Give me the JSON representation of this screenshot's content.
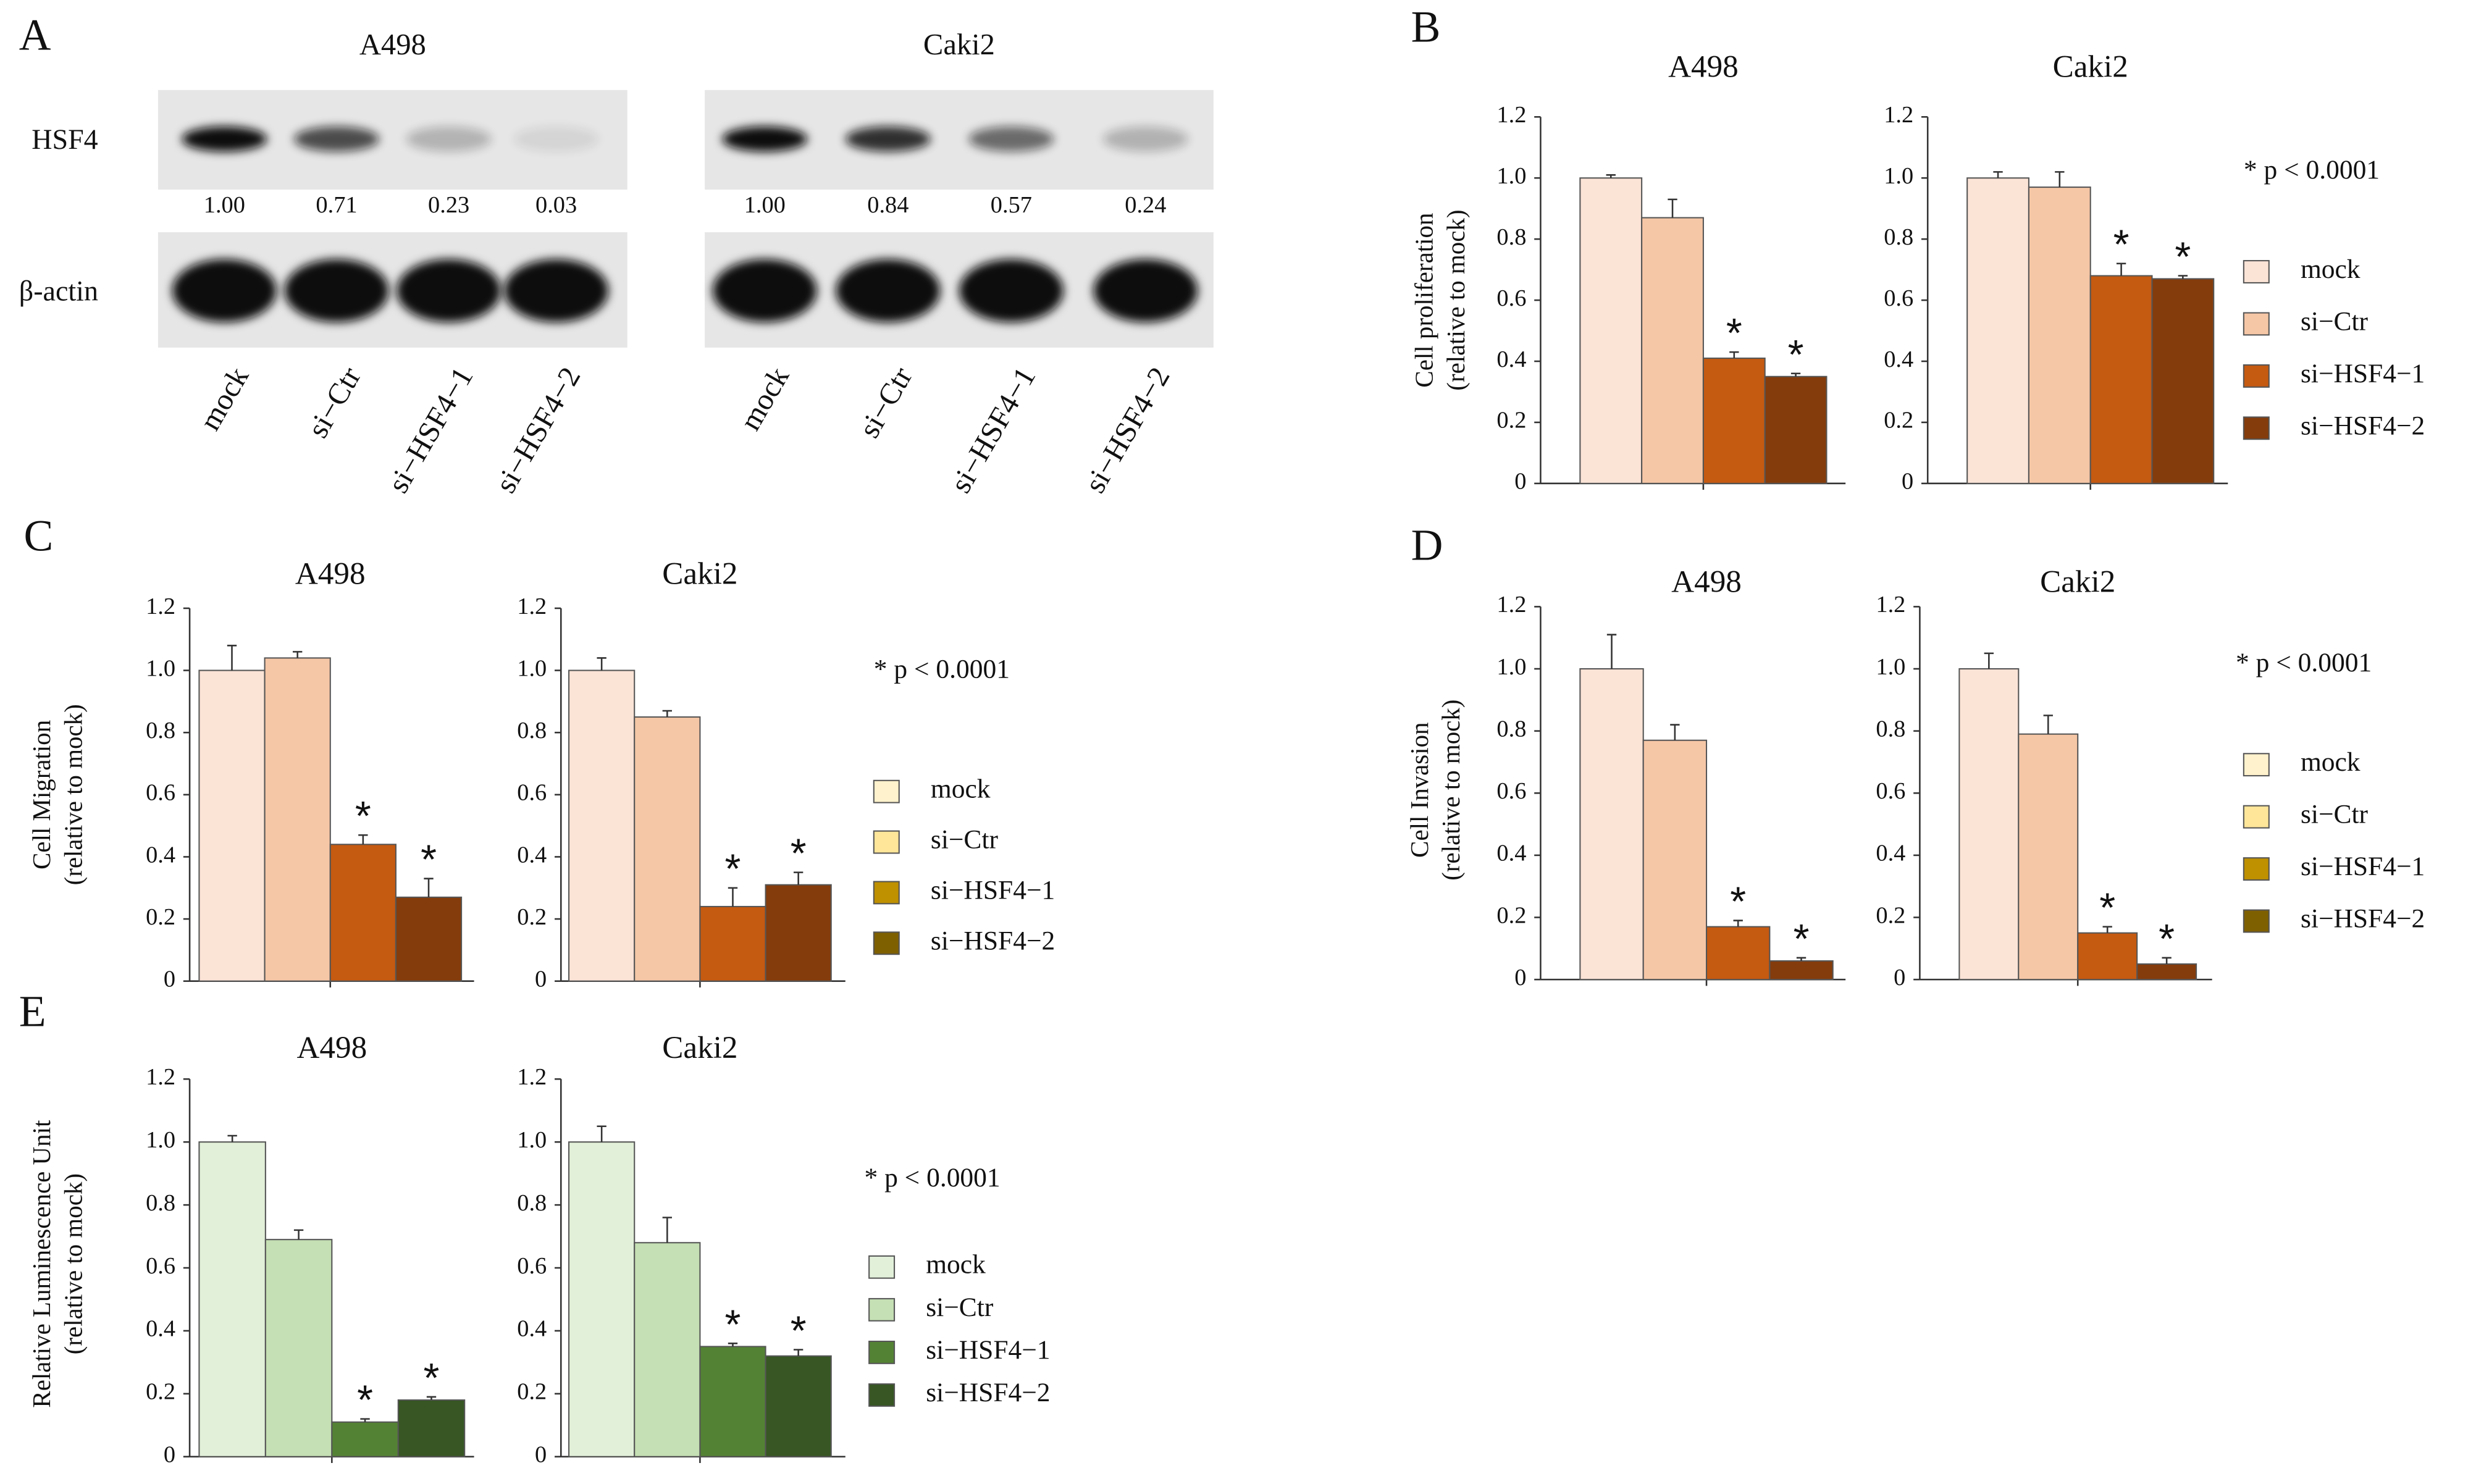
{
  "western_blot": {
    "panel_label": "A",
    "rows": [
      "HSF4",
      "β-actin"
    ],
    "lanes": [
      "mock",
      "si−Ctr",
      "si−HSF4−1",
      "si−HSF4−2"
    ],
    "cell_lines": [
      {
        "name": "A498",
        "densities": [
          1,
          0.71,
          0.23,
          0.03
        ],
        "density_labels": [
          "1.00",
          "0.71",
          "0.23",
          "0.03"
        ]
      },
      {
        "name": "Caki2",
        "densities": [
          1,
          0.84,
          0.57,
          0.24
        ],
        "density_labels": [
          "1.00",
          "0.84",
          "0.57",
          "0.24"
        ]
      }
    ]
  },
  "chart_data": [
    {
      "type": "bar",
      "panel_label": "B",
      "title": "A498",
      "ylabel": [
        "Cell proliferation",
        "(relative to mock)"
      ],
      "values": [
        1.0,
        0.87,
        0.41,
        0.35
      ],
      "errors": [
        0.01,
        0.06,
        0.02,
        0.01
      ],
      "colors": [
        "#fbe3d6",
        "#f6c7a6",
        "#c55a11",
        "#843c0c"
      ],
      "significance": [
        null,
        null,
        "*",
        "*"
      ],
      "ylim": [
        0,
        1.2
      ],
      "yticks": [
        0,
        0.2,
        0.4,
        0.6,
        0.8,
        {
          "value": 1,
          "label": "1.0"
        },
        1.2
      ]
    },
    {
      "type": "bar",
      "title": "Caki2",
      "values": [
        1.0,
        0.97,
        0.68,
        0.67
      ],
      "errors": [
        0.02,
        0.05,
        0.04,
        0.01
      ],
      "colors": [
        "#fbe3d6",
        "#f6c7a6",
        "#c55a11",
        "#843c0c"
      ],
      "significance": [
        null,
        null,
        "*",
        "*"
      ],
      "ylim": [
        0,
        1.2
      ],
      "yticks": [
        0,
        0.2,
        0.4,
        0.6,
        0.8,
        {
          "value": 1,
          "label": "1.0"
        },
        1.2
      ],
      "annotation": "* p < 0.0001",
      "legend": {
        "labels": [
          "mock",
          "si−Ctr",
          "si−HSF4−1",
          "si−HSF4−2"
        ],
        "colors": [
          "#fbe3d6",
          "#f6c7a6",
          "#c55a11",
          "#843c0c"
        ]
      }
    },
    {
      "type": "bar",
      "panel_label": "C",
      "title": "A498",
      "ylabel": [
        "Cell Migration",
        "(relative to mock)"
      ],
      "values": [
        1.0,
        1.04,
        0.44,
        0.27
      ],
      "errors": [
        0.08,
        0.02,
        0.03,
        0.06
      ],
      "colors": [
        "#fbe3d6",
        "#f6c7a6",
        "#c55a11",
        "#843c0c"
      ],
      "significance": [
        null,
        null,
        "*",
        "*"
      ],
      "ylim": [
        0,
        1.2
      ],
      "yticks": [
        0,
        0.2,
        0.4,
        0.6,
        0.8,
        {
          "value": 1,
          "label": "1.0"
        },
        1.2
      ]
    },
    {
      "type": "bar",
      "title": "Caki2",
      "values": [
        1.0,
        0.85,
        0.24,
        0.31
      ],
      "errors": [
        0.04,
        0.02,
        0.06,
        0.04
      ],
      "colors": [
        "#fbe3d6",
        "#f6c7a6",
        "#c55a11",
        "#843c0c"
      ],
      "significance": [
        null,
        null,
        "*",
        "*"
      ],
      "ylim": [
        0,
        1.2
      ],
      "yticks": [
        0,
        0.2,
        0.4,
        0.6,
        0.8,
        {
          "value": 1,
          "label": "1.0"
        },
        1.2
      ],
      "annotation": "* p < 0.0001",
      "legend": {
        "labels": [
          "mock",
          "si−Ctr",
          "si−HSF4−1",
          "si−HSF4−2"
        ],
        "colors": [
          "#fff2cc",
          "#ffe699",
          "#bf9000",
          "#7f6000"
        ]
      }
    },
    {
      "type": "bar",
      "panel_label": "D",
      "title": "A498",
      "ylabel": [
        "Cell  Invasion",
        "(relative to mock)"
      ],
      "values": [
        1.0,
        0.77,
        0.17,
        0.06
      ],
      "errors": [
        0.11,
        0.05,
        0.02,
        0.01
      ],
      "colors": [
        "#fbe3d6",
        "#f6c7a6",
        "#c55a11",
        "#843c0c"
      ],
      "significance": [
        null,
        null,
        "*",
        "*"
      ],
      "ylim": [
        0,
        1.2
      ],
      "yticks": [
        0,
        0.2,
        0.4,
        0.6,
        0.8,
        {
          "value": 1,
          "label": "1.0"
        },
        1.2
      ]
    },
    {
      "type": "bar",
      "title": "Caki2",
      "values": [
        1.0,
        0.79,
        0.15,
        0.05
      ],
      "errors": [
        0.05,
        0.06,
        0.02,
        0.02
      ],
      "colors": [
        "#fbe3d6",
        "#f6c7a6",
        "#c55a11",
        "#843c0c"
      ],
      "significance": [
        null,
        null,
        "*",
        "*"
      ],
      "ylim": [
        0,
        1.2
      ],
      "yticks": [
        0,
        0.2,
        0.4,
        0.6,
        0.8,
        {
          "value": 1,
          "label": "1.0"
        },
        1.2
      ],
      "annotation": "* p < 0.0001",
      "legend": {
        "labels": [
          "mock",
          "si−Ctr",
          "si−HSF4−1",
          "si−HSF4−2"
        ],
        "colors": [
          "#fff2cc",
          "#ffe699",
          "#bf9000",
          "#7f6000"
        ]
      }
    },
    {
      "type": "bar",
      "panel_label": "E",
      "title": "A498",
      "ylabel": [
        "Relative Luminescence Unit",
        "(relative to mock)"
      ],
      "values": [
        1.0,
        0.69,
        0.11,
        0.18
      ],
      "errors": [
        0.02,
        0.03,
        0.01,
        0.01
      ],
      "colors": [
        "#e2f0d9",
        "#c5e0b4",
        "#548235",
        "#375623"
      ],
      "significance": [
        null,
        null,
        "*",
        "*"
      ],
      "ylim": [
        0,
        1.2
      ],
      "yticks": [
        0,
        0.2,
        0.4,
        0.6,
        0.8,
        {
          "value": 1,
          "label": "1.0"
        },
        1.2
      ]
    },
    {
      "type": "bar",
      "title": "Caki2",
      "values": [
        1.0,
        0.68,
        0.35,
        0.32
      ],
      "errors": [
        0.05,
        0.08,
        0.01,
        0.02
      ],
      "colors": [
        "#e2f0d9",
        "#c5e0b4",
        "#548235",
        "#375623"
      ],
      "significance": [
        null,
        null,
        "*",
        "*"
      ],
      "ylim": [
        0,
        1.2
      ],
      "yticks": [
        0,
        0.2,
        0.4,
        0.6,
        0.8,
        {
          "value": 1,
          "label": "1.0"
        },
        1.2
      ],
      "annotation": "* p < 0.0001",
      "legend": {
        "labels": [
          "mock",
          "si−Ctr",
          "si−HSF4−1",
          "si−HSF4−2"
        ],
        "colors": [
          "#e2f0d9",
          "#c5e0b4",
          "#548235",
          "#375623"
        ]
      }
    }
  ]
}
